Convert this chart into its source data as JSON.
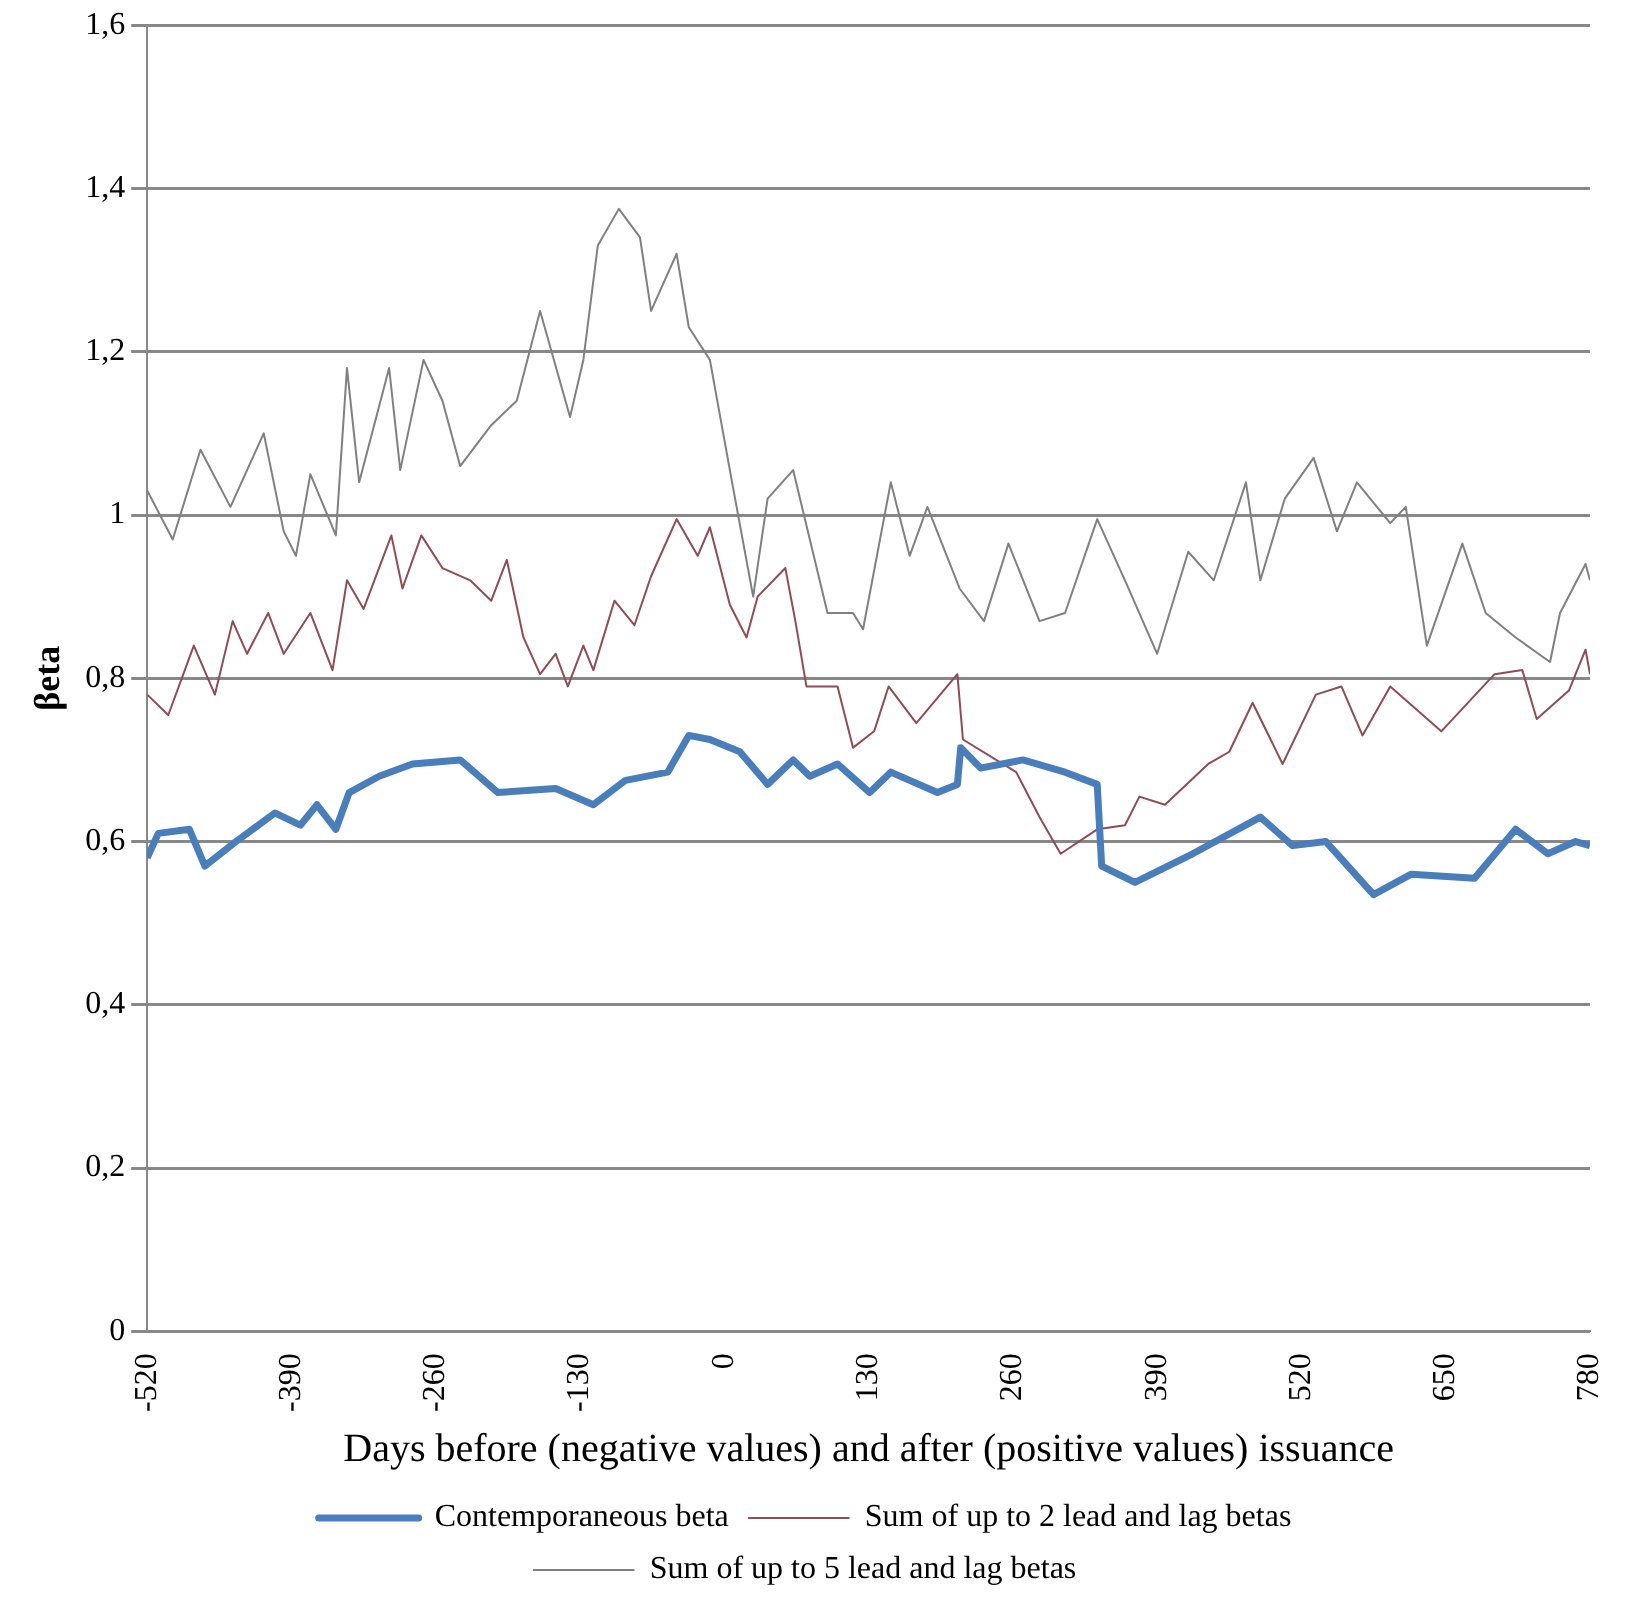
{
  "chart_data": {
    "type": "line",
    "xlabel": "Days before (negative values) and after (positive values) issuance",
    "ylabel": "βeta",
    "xlim": [
      -520,
      780
    ],
    "xticks": [
      -520,
      -390,
      -260,
      -130,
      0,
      130,
      260,
      390,
      520,
      650,
      780
    ],
    "ylim": [
      0,
      1.6
    ],
    "yticks": [
      0,
      {
        "value": 0.2,
        "label": "0,2"
      },
      {
        "value": 0.4,
        "label": "0,4"
      },
      {
        "value": 0.6,
        "label": "0,6"
      },
      {
        "value": 0.8,
        "label": "0,8"
      },
      1,
      {
        "value": 1.2,
        "label": "1,2"
      },
      {
        "value": 1.4,
        "label": "1,4"
      },
      {
        "value": 1.6,
        "label": "1,6"
      }
    ],
    "grid": "y",
    "legend": "bottom",
    "marker": "none",
    "line_style": "solid",
    "series": [
      {
        "name": "Contemporaneous beta",
        "color": "#4a7ebb",
        "x": [
          -520,
          -510,
          -482,
          -468,
          -440,
          -405,
          -382,
          -367,
          -350,
          -338,
          -311,
          -281,
          -238,
          -204,
          -152,
          -118,
          -89,
          -51,
          -32,
          -13,
          14,
          39,
          62,
          77,
          102,
          131,
          150,
          192,
          210,
          213,
          231,
          269,
          307,
          336,
          340,
          370,
          422,
          483,
          512,
          542,
          585,
          619,
          676,
          713,
          742,
          767,
          780
        ],
        "values": [
          0.58,
          0.61,
          0.615,
          0.57,
          0.6,
          0.635,
          0.62,
          0.645,
          0.615,
          0.66,
          0.68,
          0.695,
          0.7,
          0.66,
          0.665,
          0.645,
          0.675,
          0.685,
          0.73,
          0.725,
          0.71,
          0.67,
          0.7,
          0.68,
          0.695,
          0.66,
          0.685,
          0.66,
          0.67,
          0.715,
          0.69,
          0.7,
          0.685,
          0.67,
          0.57,
          0.55,
          0.585,
          0.63,
          0.595,
          0.6,
          0.535,
          0.56,
          0.555,
          0.615,
          0.585,
          0.6,
          0.595
        ]
      },
      {
        "name": "Sum of up to 2 lead and lag betas",
        "color": "#8c4d55",
        "x": [
          -520,
          -501,
          -478,
          -459,
          -443,
          -430,
          -411,
          -397,
          -373,
          -353,
          -340,
          -325,
          -300,
          -290,
          -273,
          -254,
          -229,
          -210,
          -196,
          -181,
          -166,
          -152,
          -141,
          -127,
          -118,
          -99,
          -81,
          -66,
          -43,
          -24,
          -13,
          5,
          20,
          30,
          55,
          64,
          74,
          102,
          116,
          135,
          148,
          173,
          210,
          215,
          263,
          284,
          303,
          336,
          361,
          374,
          397,
          436,
          455,
          476,
          503,
          533,
          556,
          575,
          600,
          646,
          694,
          719,
          732,
          761,
          776,
          780
        ],
        "values": [
          0.78,
          0.755,
          0.84,
          0.78,
          0.87,
          0.83,
          0.88,
          0.83,
          0.88,
          0.81,
          0.92,
          0.885,
          0.975,
          0.91,
          0.975,
          0.935,
          0.92,
          0.895,
          0.945,
          0.85,
          0.805,
          0.83,
          0.79,
          0.84,
          0.81,
          0.895,
          0.865,
          0.925,
          0.995,
          0.95,
          0.985,
          0.89,
          0.85,
          0.9,
          0.935,
          0.87,
          0.79,
          0.79,
          0.715,
          0.735,
          0.79,
          0.745,
          0.805,
          0.725,
          0.685,
          0.63,
          0.585,
          0.615,
          0.62,
          0.655,
          0.645,
          0.695,
          0.71,
          0.77,
          0.695,
          0.78,
          0.79,
          0.73,
          0.79,
          0.735,
          0.805,
          0.81,
          0.75,
          0.785,
          0.835,
          0.805
        ]
      },
      {
        "name": "Sum of up to 5 lead and lag betas",
        "color": "#808080",
        "x": [
          -520,
          -497,
          -472,
          -445,
          -415,
          -397,
          -386,
          -373,
          -350,
          -340,
          -329,
          -302,
          -292,
          -271,
          -254,
          -238,
          -210,
          -187,
          -166,
          -139,
          -127,
          -114,
          -95,
          -76,
          -66,
          -43,
          -32,
          -13,
          7,
          26,
          39,
          62,
          93,
          116,
          125,
          150,
          167,
          183,
          212,
          234,
          256,
          284,
          307,
          336,
          361,
          390,
          418,
          441,
          470,
          483,
          505,
          531,
          552,
          570,
          600,
          614,
          633,
          665,
          686,
          713,
          744,
          753,
          776,
          780
        ],
        "values": [
          1.03,
          0.97,
          1.08,
          1.01,
          1.1,
          0.98,
          0.95,
          1.05,
          0.975,
          1.18,
          1.04,
          1.18,
          1.055,
          1.19,
          1.14,
          1.06,
          1.11,
          1.14,
          1.25,
          1.12,
          1.19,
          1.33,
          1.375,
          1.34,
          1.25,
          1.32,
          1.23,
          1.19,
          1.04,
          0.9,
          1.02,
          1.055,
          0.88,
          0.88,
          0.86,
          1.04,
          0.95,
          1.01,
          0.91,
          0.87,
          0.965,
          0.87,
          0.88,
          0.995,
          0.92,
          0.83,
          0.955,
          0.92,
          1.04,
          0.92,
          1.02,
          1.07,
          0.98,
          1.04,
          0.99,
          1.01,
          0.84,
          0.965,
          0.88,
          0.85,
          0.82,
          0.88,
          0.94,
          0.92
        ]
      }
    ]
  }
}
